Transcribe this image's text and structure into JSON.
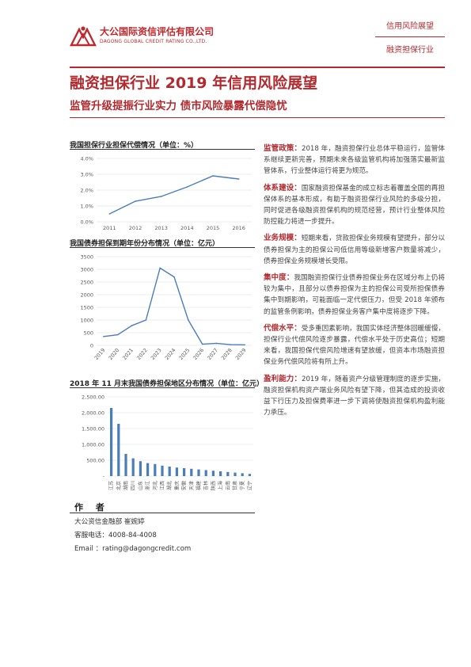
{
  "header": {
    "logo_cn": "大公国际资信评估有限公司",
    "logo_en": "DAGONG GLOBAL CREDIT RATING CO.,LTD.",
    "series_label": "信用风险展望",
    "industry_label": "融资担保行业"
  },
  "report": {
    "title": "融资担保行业 2019 年信用风险展望",
    "subtitle": "监管升级提振行业实力    债市风险暴露代偿隐忧"
  },
  "chart_data": [
    {
      "type": "line",
      "title": "我国担保行业担保代偿情况（单位：%）",
      "x": [
        "2011",
        "2012",
        "2013",
        "2014",
        "2015",
        "2016"
      ],
      "values": [
        0.5,
        1.3,
        1.6,
        2.2,
        2.9,
        2.7
      ],
      "ylim": [
        0,
        4
      ],
      "ytick_labels": [
        "0.0%",
        "1.0%",
        "2.0%",
        "3.0%",
        "4.0%"
      ],
      "grid": true,
      "color": "#4a7ebb"
    },
    {
      "type": "line",
      "title": "我国债券担保到期年份分布情况（单位：亿元）",
      "x": [
        "2019",
        "2020",
        "2021",
        "2022",
        "2023",
        "2024",
        "2025",
        "2026",
        "2027",
        "2028",
        "2029"
      ],
      "values": [
        350,
        420,
        780,
        1000,
        3050,
        2700,
        1000,
        50,
        80,
        30,
        20
      ],
      "ylim": [
        0,
        3500
      ],
      "ytick_labels": [
        "0",
        "500",
        "1000",
        "1500",
        "2000",
        "2500",
        "3000",
        "3500"
      ],
      "grid": true,
      "color": "#4a7ebb"
    },
    {
      "type": "bar",
      "title": "2018 年 11 月末我国债券担保地区分布情况（单位：亿元）",
      "categories": [
        "江苏",
        "北京",
        "湖南",
        "四川",
        "山东",
        "浙江",
        "河北",
        "江西",
        "湖北",
        "重庆",
        "安徽",
        "天津",
        "福建",
        "吉林",
        "陕西",
        "上海",
        "云南",
        "甘肃",
        "宁夏",
        "辽宁"
      ],
      "values": [
        2150,
        1650,
        700,
        560,
        470,
        410,
        380,
        330,
        300,
        270,
        250,
        230,
        210,
        190,
        170,
        150,
        130,
        110,
        90,
        70
      ],
      "ylim": [
        0,
        2500
      ],
      "ytick_labels": [
        "-",
        "500.00",
        "1,000.00",
        "1,500.00",
        "2,000.00",
        "2,500.00"
      ],
      "grid": true,
      "color": "#4a7ebb"
    }
  ],
  "sections": [
    {
      "label": "监管政策：",
      "text": "2018 年，融资担保行业总体平稳运行，监管体系继续更新完善，预期未来各级监管机构将加强落实最新监管体系，行业整体运行将更为规范。"
    },
    {
      "label": "体系建设：",
      "text": "国家融资担保基金的成立标志着覆盖全国的再担保体系的基本形成，有助于融资担保行业风险的多级分担，同时促进各级融资担保机构的规范经营，预计行业整体风险防控能力将进一步提升。"
    },
    {
      "label": "业务规模：",
      "text": "短期来看，贷款担保业务规模有望提升，部分以债券担保为主的担保公司低信用等级新增客户数量将减少，债券担保业务规模增长受限。"
    },
    {
      "label": "集中度：",
      "text": "我国融资担保行业债券担保业务在区域分布上仍将较为集中，且部分以债券担保为主的担保公司受所担保债券集中到期影响，可能面临一定代偿压力，但受 2018 年颁布的监管条例影响，债券担保业务客户集中度将逐步下降。"
    },
    {
      "label": "代偿水平：",
      "text": "受多重因素影响，我国实体经济整体回暖缓慢，担保行业代偿风险逐步暴露，代偿水平处于历史高位；短期来看，我国担保代偿风险增速有望放缓，但资本市场融资担保业务代偿风险将有所上升。"
    },
    {
      "label": "盈利能力：",
      "text": "2019 年，随着资产分级管理制度的逐步实施，融资担保机构资产端业务风险有望下降，但其造成的投资收益下行压力及担保费率进一步下调将使融资担保机构盈利能力承压。"
    }
  ],
  "author": {
    "heading": "作  者",
    "dept_line": "大公资信金融部    崔婉婷",
    "phone_line": "客服电话：4008-84-4008",
    "email_line": "Email    ：rating@dagongcredit.com"
  }
}
